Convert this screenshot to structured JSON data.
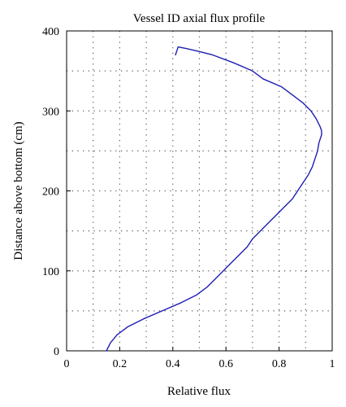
{
  "chart_data": {
    "type": "line",
    "title": "Vessel ID axial flux profile",
    "xlabel": "Relative flux",
    "ylabel": "Distance above bottom (cm)",
    "xlim": [
      0,
      1
    ],
    "ylim": [
      0,
      400
    ],
    "x_ticks": [
      0,
      0.2,
      0.4,
      0.6,
      0.8,
      1
    ],
    "x_tick_labels": [
      "0",
      "0.2",
      "0.4",
      "0.6",
      "0.8",
      "1"
    ],
    "y_ticks": [
      0,
      100,
      200,
      300,
      400
    ],
    "y_tick_labels": [
      "0",
      "100",
      "200",
      "300",
      "400"
    ],
    "x_grid": [
      0.1,
      0.2,
      0.3,
      0.4,
      0.5,
      0.6,
      0.7,
      0.8,
      0.9
    ],
    "y_grid": [
      50,
      100,
      150,
      200,
      250,
      300,
      350
    ],
    "grid": "dotted",
    "legend": "none",
    "series": [
      {
        "color": "#1f1fb4",
        "x": [
          0.15,
          0.165,
          0.19,
          0.23,
          0.29,
          0.36,
          0.43,
          0.49,
          0.53,
          0.56,
          0.59,
          0.62,
          0.65,
          0.68,
          0.7,
          0.73,
          0.76,
          0.79,
          0.82,
          0.85,
          0.87,
          0.89,
          0.91,
          0.925,
          0.935,
          0.945,
          0.95,
          0.955,
          0.96,
          0.96,
          0.955,
          0.94,
          0.92,
          0.89,
          0.85,
          0.81,
          0.74,
          0.7,
          0.63,
          0.55,
          0.49,
          0.45,
          0.42,
          0.415,
          0.41
        ],
        "y": [
          0,
          10,
          20,
          30,
          40,
          50,
          60,
          70,
          80,
          90,
          100,
          110,
          120,
          130,
          140,
          150,
          160,
          170,
          180,
          190,
          200,
          210,
          220,
          230,
          240,
          250,
          260,
          265,
          270,
          275,
          280,
          290,
          300,
          310,
          320,
          330,
          340,
          350,
          360,
          370,
          375,
          378,
          380,
          375,
          370
        ]
      }
    ]
  }
}
